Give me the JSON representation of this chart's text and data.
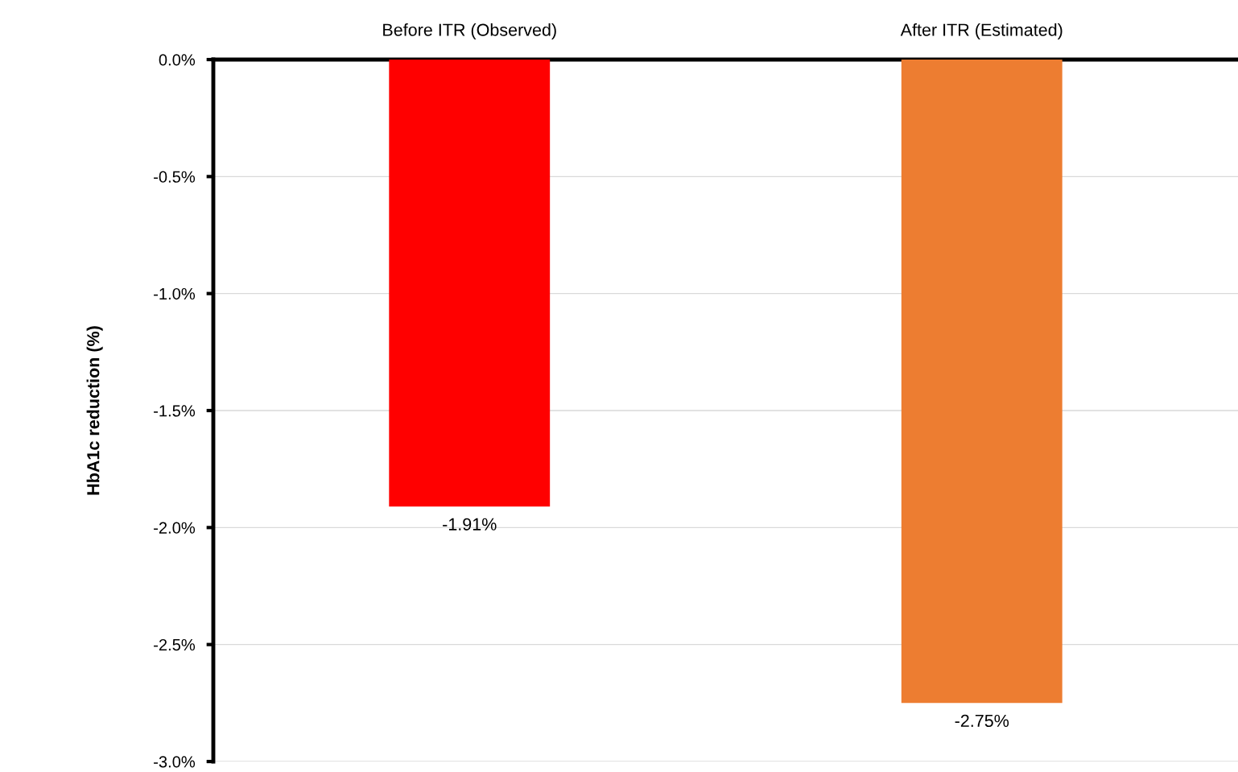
{
  "chart_data": {
    "type": "bar",
    "ylabel": "HbA1c reduction (%)",
    "categories": [
      "Before ITR (Observed)",
      "After ITR (Estimated)"
    ],
    "values": [
      -1.91,
      -2.75
    ],
    "colors": [
      "#ff0000",
      "#ed7d31"
    ],
    "value_labels": [
      "-1.91%",
      "-2.75%"
    ],
    "ylim": [
      -3.0,
      0.0
    ],
    "yticks": [
      {
        "value": 0.0,
        "label": "0.0%"
      },
      {
        "value": -0.5,
        "label": "-0.5%"
      },
      {
        "value": -1.0,
        "label": "-1.0%"
      },
      {
        "value": -1.5,
        "label": "-1.5%"
      },
      {
        "value": -2.0,
        "label": "-2.0%"
      },
      {
        "value": -2.5,
        "label": "-2.5%"
      },
      {
        "value": -3.0,
        "label": "-3.0%"
      }
    ],
    "grid": "y",
    "legend": false
  }
}
